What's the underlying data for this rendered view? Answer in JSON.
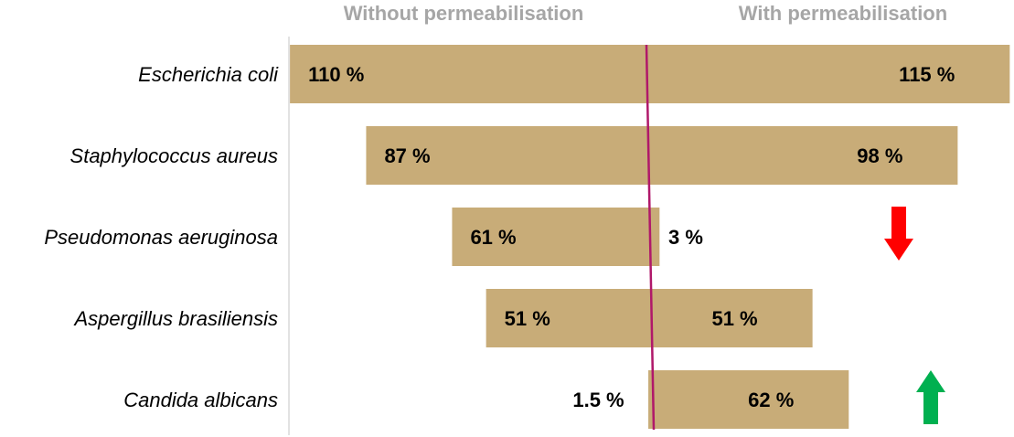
{
  "headers": {
    "left": "Without permeabilisation",
    "right": "With permeabilisation"
  },
  "colors": {
    "bar": "#c8ac78",
    "center_line": "#b0186a",
    "axis_line": "#d9d9d9",
    "header_text": "#a6a6a6",
    "arrow_down": "#ff0000",
    "arrow_up": "#00b050"
  },
  "chart_data": {
    "type": "bar",
    "orientation": "horizontal-diverging",
    "title": "",
    "categories": [
      "Escherichia coli",
      "Staphylococcus aureus",
      "Pseudomonas aeruginosa",
      "Aspergillus brasiliensis",
      "Candida albicans"
    ],
    "series": [
      {
        "name": "Without permeabilisation",
        "values": [
          110,
          87,
          61,
          51,
          1.5
        ],
        "labels": [
          "110 %",
          "87 %",
          "61 %",
          "51 %",
          "1.5 %"
        ]
      },
      {
        "name": "With permeabilisation",
        "values": [
          115,
          98,
          3,
          51,
          62
        ],
        "labels": [
          "115 %",
          "98 %",
          "3 %",
          "51 %",
          "62 %"
        ]
      }
    ],
    "indicators": [
      {
        "category": "Pseudomonas aeruginosa",
        "arrow": "down",
        "color": "#ff0000"
      },
      {
        "category": "Candida albicans",
        "arrow": "up",
        "color": "#00b050"
      }
    ],
    "unit": "%",
    "xlim": [
      -110,
      115
    ]
  }
}
